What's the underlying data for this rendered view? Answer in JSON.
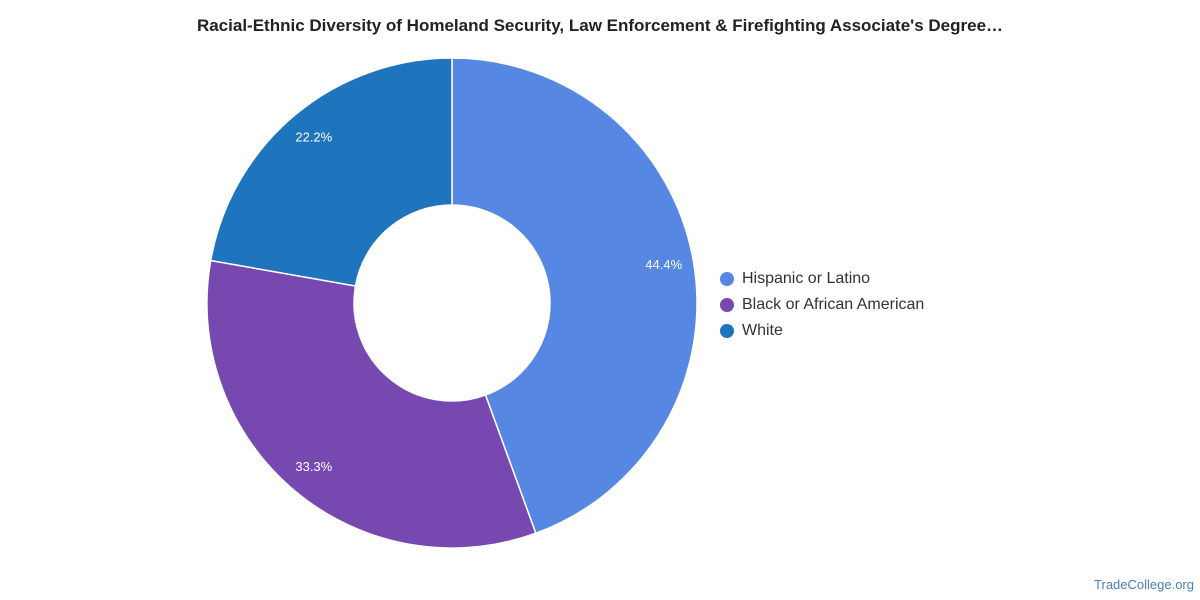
{
  "chart_data": {
    "type": "pie",
    "title": "Racial-Ethnic Diversity of Homeland Security, Law Enforcement & Firefighting Associate's Degree…",
    "categories": [
      "Hispanic or Latino",
      "Black or African American",
      "White"
    ],
    "values": [
      44.4,
      33.3,
      22.2
    ],
    "value_labels": [
      "44.4%",
      "33.3%",
      "22.2%"
    ],
    "colors": [
      "#5587e3",
      "#7648b0",
      "#1f74be"
    ],
    "donut": true,
    "legend_position": "right"
  },
  "source": "TradeCollege.org"
}
